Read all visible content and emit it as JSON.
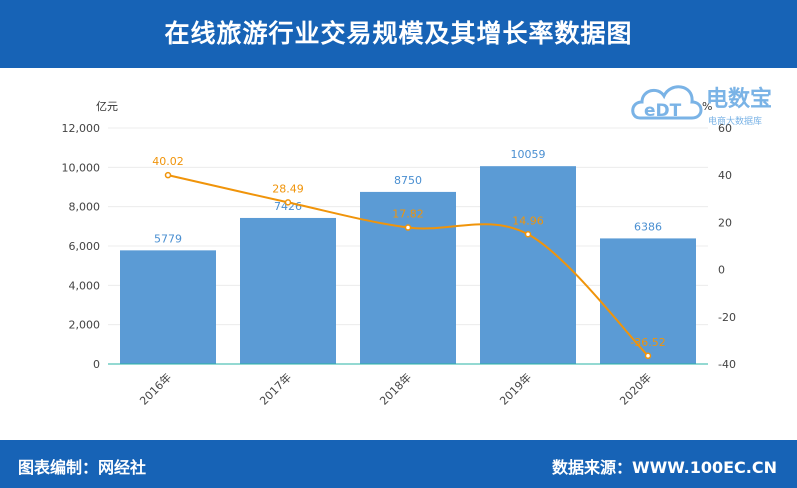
{
  "header": {
    "title": "在线旅游行业交易规模及其增长率数据图"
  },
  "footer": {
    "left": "图表编制：网经社",
    "right": "数据来源：WWW.100EC.CN"
  },
  "logo": {
    "mark": "eDT",
    "name": "电数宝",
    "tagline": "电商大数据库",
    "icon": "cloud-logo-icon"
  },
  "colors": {
    "header_bg": "#1763b6",
    "bar": "#5b9bd5",
    "line": "#f0940a"
  },
  "chart_data": {
    "type": "bar+line",
    "categories": [
      "2016年",
      "2017年",
      "2018年",
      "2019年",
      "2020年"
    ],
    "series": [
      {
        "type": "bar",
        "values": [
          5779,
          7426,
          8750,
          10059,
          6386
        ],
        "axis": "left"
      },
      {
        "type": "line",
        "values": [
          40.02,
          28.49,
          17.82,
          14.96,
          -36.52
        ],
        "axis": "right"
      }
    ],
    "y_left": {
      "unit": "亿元",
      "ylim": [
        0,
        12000
      ],
      "ticks": [
        "0",
        "2,000",
        "4,000",
        "6,000",
        "8,000",
        "10,000",
        "12,000"
      ]
    },
    "y_right": {
      "unit": "%",
      "ylim": [
        -40,
        60
      ],
      "ticks": [
        "-40",
        "-20",
        "0",
        "20",
        "40",
        "60"
      ]
    },
    "grid": true
  }
}
